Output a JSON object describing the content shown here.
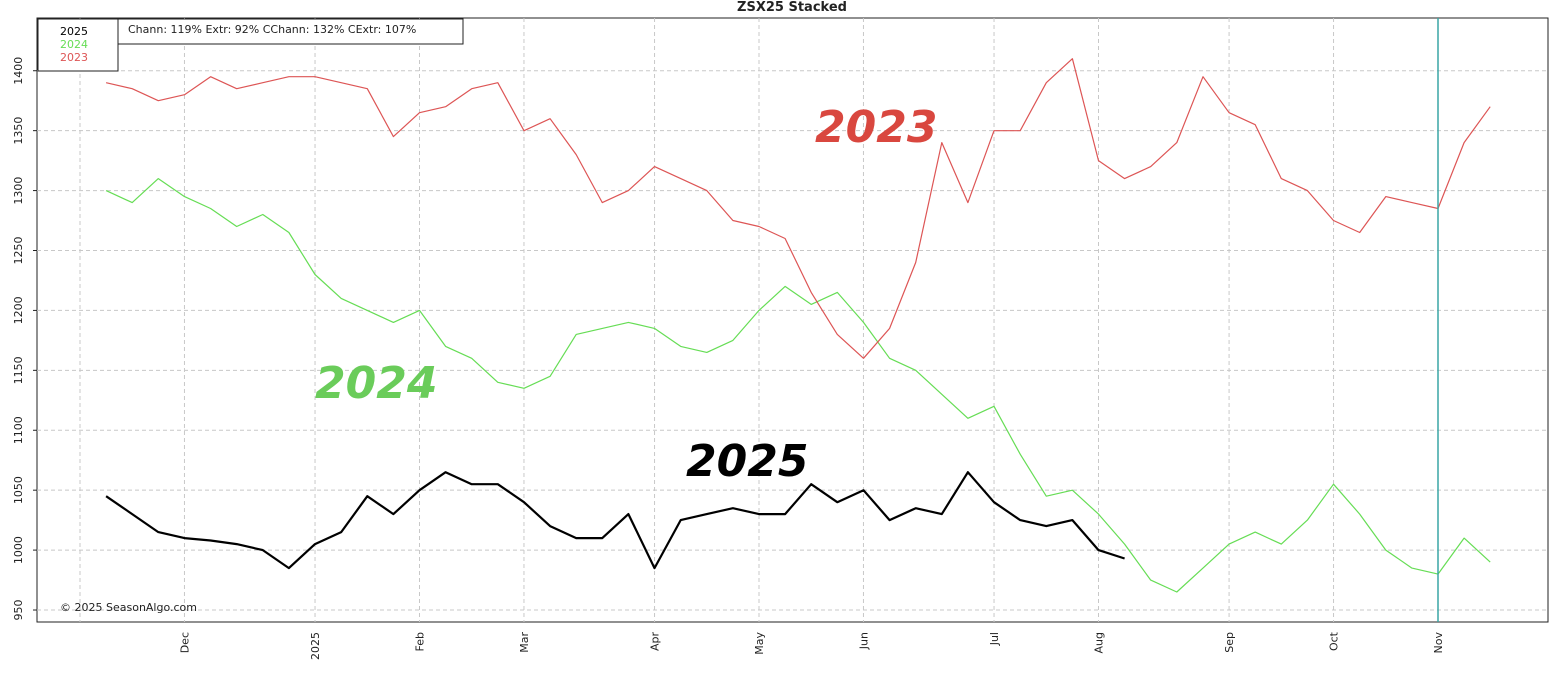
{
  "chart_data": {
    "type": "line",
    "title": "ZSX25  Stacked",
    "stats": "Chann: 119%  Extr: 92%  CChann: 132%  CExtr: 107%",
    "copyright": "© 2025 SeasonAlgo.com",
    "annotations": [
      "2023",
      "2024",
      "2025"
    ],
    "categories": [
      null,
      null,
      null,
      null,
      "Dec",
      null,
      null,
      null,
      null,
      "2025",
      null,
      null,
      null,
      "Feb",
      null,
      null,
      null,
      "Mar",
      null,
      null,
      null,
      null,
      "Apr",
      null,
      null,
      null,
      "May",
      null,
      null,
      null,
      "Jun",
      null,
      null,
      null,
      null,
      "Jul",
      null,
      null,
      null,
      "Aug",
      null,
      null,
      null,
      null,
      "Sep",
      null,
      null,
      null,
      "Oct",
      null,
      null,
      null,
      "Nov",
      null,
      null
    ],
    "series": [
      {
        "name": "2025",
        "color": "#000000",
        "values": [
          null,
          1045,
          1030,
          1015,
          1010,
          1008,
          1005,
          1000,
          985,
          1005,
          1015,
          1045,
          1030,
          1050,
          1065,
          1055,
          1055,
          1040,
          1020,
          1010,
          1010,
          1030,
          985,
          1025,
          1030,
          1035,
          1030,
          1030,
          1055,
          1040,
          1050,
          1025,
          1035,
          1030,
          1065,
          1040,
          1025,
          1020,
          1025,
          1000,
          993,
          null,
          null,
          null,
          null,
          null,
          null,
          null,
          null,
          null,
          null,
          null,
          null,
          null,
          null
        ]
      },
      {
        "name": "2024",
        "color": "#66dd55",
        "values": [
          null,
          1300,
          1290,
          1310,
          1295,
          1285,
          1270,
          1280,
          1265,
          1230,
          1210,
          1200,
          1190,
          1200,
          1170,
          1160,
          1140,
          1135,
          1145,
          1180,
          1185,
          1190,
          1185,
          1170,
          1165,
          1175,
          1200,
          1220,
          1205,
          1215,
          1190,
          1160,
          1150,
          1130,
          1110,
          1120,
          1080,
          1045,
          1050,
          1030,
          1005,
          975,
          965,
          985,
          1005,
          1015,
          1005,
          1025,
          1055,
          1030,
          1000,
          985,
          980,
          1010,
          990
        ]
      },
      {
        "name": "2023",
        "color": "#dd5555",
        "values": [
          null,
          1390,
          1385,
          1375,
          1380,
          1395,
          1385,
          1390,
          1395,
          1395,
          1390,
          1385,
          1345,
          1365,
          1370,
          1385,
          1390,
          1350,
          1360,
          1330,
          1290,
          1300,
          1320,
          1310,
          1300,
          1275,
          1270,
          1260,
          1215,
          1180,
          1160,
          1185,
          1240,
          1340,
          1290,
          1350,
          1350,
          1390,
          1410,
          1325,
          1310,
          1320,
          1340,
          1395,
          1365,
          1355,
          1310,
          1300,
          1275,
          1265,
          1295,
          1290,
          1285,
          1340,
          1370
        ]
      }
    ],
    "ylim": [
      940,
      1444
    ],
    "yticks": [
      950,
      1000,
      1050,
      1100,
      1150,
      1200,
      1250,
      1300,
      1350,
      1400
    ],
    "grid": true
  }
}
